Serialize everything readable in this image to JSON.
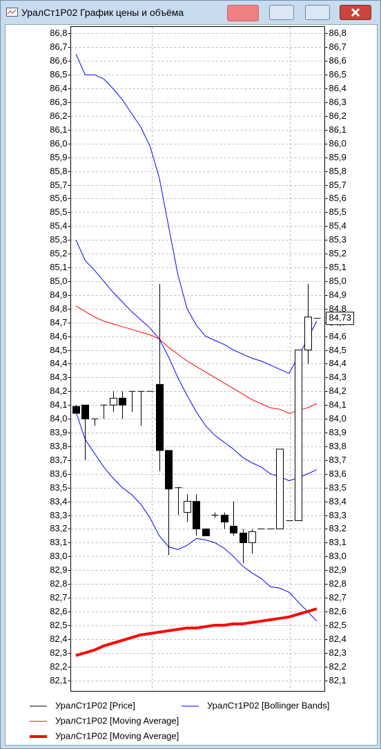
{
  "window_title": "УралСт1P02 График цены и объёма",
  "chart_data": {
    "type": "candlestick",
    "categories": [
      null,
      null,
      null,
      null,
      null,
      null,
      null,
      null,
      null,
      null,
      null,
      null,
      null,
      null,
      null,
      null,
      null,
      null,
      null,
      null,
      null,
      null,
      null,
      null,
      null,
      null,
      null
    ],
    "price": {
      "name": "УралСт1P02 [Price]",
      "color": "#000000",
      "open": [
        84.09,
        84.1,
        84.0,
        84.1,
        84.1,
        84.15,
        84.2,
        84.2,
        84.2,
        84.25,
        83.77,
        83.5,
        83.32,
        83.4,
        83.2,
        83.3,
        83.3,
        83.22,
        83.17,
        83.1,
        83.2,
        83.2,
        83.2,
        83.26,
        83.26,
        84.5,
        84.73
      ],
      "high": [
        84.1,
        84.1,
        84.0,
        84.1,
        84.2,
        84.2,
        84.2,
        84.2,
        84.2,
        84.98,
        83.77,
        83.5,
        83.45,
        83.45,
        83.2,
        83.32,
        83.32,
        83.4,
        83.2,
        83.2,
        83.2,
        83.2,
        83.78,
        83.26,
        84.5,
        84.98,
        84.73
      ],
      "low": [
        84.04,
        83.7,
        83.95,
        84.0,
        84.05,
        84.0,
        84.05,
        83.95,
        84.2,
        83.62,
        83.01,
        83.3,
        83.25,
        83.15,
        83.15,
        83.28,
        83.2,
        83.15,
        82.95,
        83.02,
        83.2,
        83.2,
        83.2,
        83.26,
        83.26,
        84.4,
        84.73
      ],
      "close": [
        84.04,
        84.0,
        84.0,
        84.1,
        84.15,
        84.1,
        84.2,
        84.2,
        84.2,
        83.77,
        83.49,
        83.5,
        83.4,
        83.2,
        83.15,
        83.3,
        83.25,
        83.17,
        83.1,
        83.18,
        83.2,
        83.2,
        83.78,
        83.26,
        84.5,
        84.74,
        84.73
      ]
    },
    "bands": {
      "name": "УралСт1P02 [Bollinger Bands]",
      "color": "#0000ff",
      "upper": [
        86.65,
        86.5,
        86.5,
        86.47,
        86.4,
        86.32,
        86.22,
        86.12,
        85.98,
        85.75,
        85.4,
        85.05,
        84.8,
        84.68,
        84.6,
        84.57,
        84.54,
        84.5,
        84.47,
        84.44,
        84.42,
        84.39,
        84.36,
        84.33,
        84.45,
        84.58,
        84.71
      ],
      "middle": [
        85.3,
        85.15,
        85.08,
        85.0,
        84.92,
        84.85,
        84.78,
        84.72,
        84.66,
        84.58,
        84.45,
        84.3,
        84.17,
        84.05,
        83.95,
        83.88,
        83.83,
        83.78,
        83.72,
        83.68,
        83.65,
        83.6,
        83.58,
        83.55,
        83.57,
        83.6,
        83.63
      ],
      "lower": [
        84.05,
        83.85,
        83.75,
        83.65,
        83.57,
        83.5,
        83.45,
        83.38,
        83.28,
        83.15,
        83.07,
        83.05,
        83.08,
        83.13,
        83.12,
        83.1,
        83.06,
        83.0,
        82.93,
        82.88,
        82.84,
        82.78,
        82.77,
        82.74,
        82.67,
        82.6,
        82.53
      ]
    },
    "averages": [
      {
        "name": "УралСт1P02 [Moving Average]",
        "color": "#ff0000",
        "width": 1,
        "values": [
          84.82,
          84.78,
          84.74,
          84.71,
          84.69,
          84.67,
          84.65,
          84.63,
          84.61,
          84.58,
          84.52,
          84.47,
          84.42,
          84.38,
          84.34,
          84.3,
          84.26,
          84.22,
          84.18,
          84.14,
          84.11,
          84.08,
          84.07,
          84.04,
          84.06,
          84.08,
          84.11
        ]
      },
      {
        "name": "УралСт1P02 [Moving Average]",
        "color": "#ff0000",
        "width": 4,
        "values": [
          82.28,
          82.3,
          82.32,
          82.35,
          82.37,
          82.39,
          82.41,
          82.43,
          82.44,
          82.45,
          82.46,
          82.47,
          82.48,
          82.48,
          82.49,
          82.5,
          82.5,
          82.51,
          82.51,
          82.52,
          82.53,
          82.54,
          82.55,
          82.56,
          82.58,
          82.6,
          82.62
        ]
      }
    ],
    "last_label": {
      "value": 84.73,
      "label": "84,73"
    },
    "ylim": [
      82.02,
      86.85
    ],
    "yticks": [
      {
        "value": 82.1,
        "label": "82,1"
      },
      {
        "value": 82.2,
        "label": "82,2"
      },
      {
        "value": 82.3,
        "label": "82,3"
      },
      {
        "value": 82.4,
        "label": "82,4"
      },
      {
        "value": 82.5,
        "label": "82,5"
      },
      {
        "value": 82.6,
        "label": "82,6"
      },
      {
        "value": 82.7,
        "label": "82,7"
      },
      {
        "value": 82.8,
        "label": "82,8"
      },
      {
        "value": 82.9,
        "label": "82,9"
      },
      {
        "value": 83.0,
        "label": "83,0"
      },
      {
        "value": 83.1,
        "label": "83,1"
      },
      {
        "value": 83.2,
        "label": "83,2"
      },
      {
        "value": 83.3,
        "label": "83,3"
      },
      {
        "value": 83.4,
        "label": "83,4"
      },
      {
        "value": 83.5,
        "label": "83,5"
      },
      {
        "value": 83.6,
        "label": "83,6"
      },
      {
        "value": 83.7,
        "label": "83,7"
      },
      {
        "value": 83.8,
        "label": "83,8"
      },
      {
        "value": 83.9,
        "label": "83,9"
      },
      {
        "value": 84.0,
        "label": "84,0"
      },
      {
        "value": 84.1,
        "label": "84,1"
      },
      {
        "value": 84.2,
        "label": "84,2"
      },
      {
        "value": 84.3,
        "label": "84,3"
      },
      {
        "value": 84.4,
        "label": "84,4"
      },
      {
        "value": 84.5,
        "label": "84,5"
      },
      {
        "value": 84.6,
        "label": "84,6"
      },
      {
        "value": 84.7,
        "label": "84,7"
      },
      {
        "value": 84.8,
        "label": "84,8"
      },
      {
        "value": 84.9,
        "label": "84,9"
      },
      {
        "value": 85.0,
        "label": "85,0"
      },
      {
        "value": 85.1,
        "label": "85,1"
      },
      {
        "value": 85.2,
        "label": "85,2"
      },
      {
        "value": 85.3,
        "label": "85,3"
      },
      {
        "value": 85.4,
        "label": "85,4"
      },
      {
        "value": 85.5,
        "label": "85,5"
      },
      {
        "value": 85.6,
        "label": "85,6"
      },
      {
        "value": 85.7,
        "label": "85,7"
      },
      {
        "value": 85.8,
        "label": "85,8"
      },
      {
        "value": 85.9,
        "label": "85,9"
      },
      {
        "value": 86.0,
        "label": "86,0"
      },
      {
        "value": 86.1,
        "label": "86,1"
      },
      {
        "value": 86.2,
        "label": "86,2"
      },
      {
        "value": 86.3,
        "label": "86,3"
      },
      {
        "value": 86.4,
        "label": "86,4"
      },
      {
        "value": 86.5,
        "label": "86,5"
      },
      {
        "value": 86.6,
        "label": "86,6"
      },
      {
        "value": 86.7,
        "label": "86,7"
      },
      {
        "value": 86.8,
        "label": "86,8"
      }
    ],
    "grid": true
  }
}
